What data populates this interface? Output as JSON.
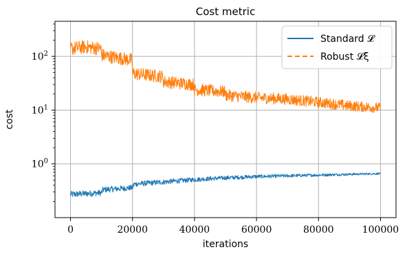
{
  "chart_data": {
    "type": "line",
    "title": "Cost metric",
    "xlabel": "iterations",
    "ylabel": "cost",
    "x_scale": "linear",
    "y_scale": "log",
    "xlim": [
      -5000,
      105000
    ],
    "ylim": [
      0.1,
      450
    ],
    "x_ticks": [
      0,
      20000,
      40000,
      60000,
      80000,
      100000
    ],
    "x_tick_labels": [
      "0",
      "20000",
      "40000",
      "60000",
      "80000",
      "100000"
    ],
    "y_ticks": [
      1,
      10,
      100
    ],
    "y_tick_labels": [
      {
        "base": "10",
        "exp": "0"
      },
      {
        "base": "10",
        "exp": "1"
      },
      {
        "base": "10",
        "exp": "2"
      }
    ],
    "grid": true,
    "legend_position": "top-right",
    "series": [
      {
        "name": "Standard 𝓛",
        "color": "#1f77b4",
        "style": "solid",
        "x": [
          0,
          10000,
          10500,
          20000,
          20500,
          30000,
          40000,
          50000,
          60000,
          70000,
          80000,
          90000,
          100000
        ],
        "y": [
          0.27,
          0.29,
          0.33,
          0.36,
          0.42,
          0.46,
          0.51,
          0.55,
          0.58,
          0.6,
          0.62,
          0.64,
          0.66
        ]
      },
      {
        "name": "Robust 𝓛ξ",
        "color": "#ff7f0e",
        "style": "dashed",
        "x": [
          0,
          5000,
          9900,
          10000,
          19900,
          20000,
          29900,
          30000,
          39900,
          40000,
          49900,
          50000,
          60000,
          70000,
          80000,
          90000,
          100000
        ],
        "y": [
          140,
          150,
          140,
          105,
          85,
          48,
          42,
          34,
          30,
          24,
          22,
          19,
          17,
          16,
          14,
          12,
          11
        ]
      }
    ]
  }
}
